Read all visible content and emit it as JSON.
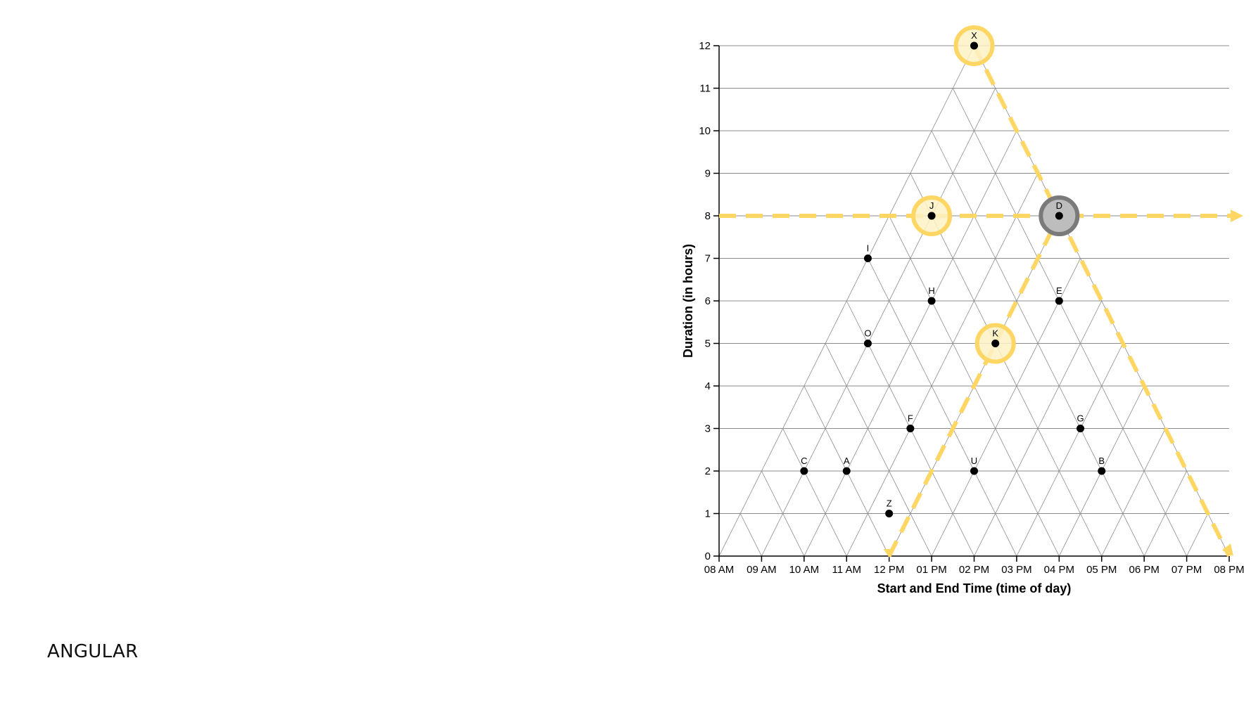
{
  "caption": "ANGULAR",
  "chart_data": {
    "type": "scatter",
    "title": "",
    "xlabel": "Start and End Time (time of day)",
    "ylabel": "Duration (in hours)",
    "xlim": [
      8,
      20
    ],
    "ylim": [
      0,
      12
    ],
    "x_ticks": [
      {
        "value": 8,
        "label": "08 AM"
      },
      {
        "value": 9,
        "label": "09 AM"
      },
      {
        "value": 10,
        "label": "10 AM"
      },
      {
        "value": 11,
        "label": "11 AM"
      },
      {
        "value": 12,
        "label": "12 PM"
      },
      {
        "value": 13,
        "label": "01 PM"
      },
      {
        "value": 14,
        "label": "02 PM"
      },
      {
        "value": 15,
        "label": "03 PM"
      },
      {
        "value": 16,
        "label": "04 PM"
      },
      {
        "value": 17,
        "label": "05 PM"
      },
      {
        "value": 18,
        "label": "06 PM"
      },
      {
        "value": 19,
        "label": "07 PM"
      },
      {
        "value": 20,
        "label": "08 PM"
      }
    ],
    "y_ticks": [
      0,
      1,
      2,
      3,
      4,
      5,
      6,
      7,
      8,
      9,
      10,
      11,
      12
    ],
    "grid": "triangular",
    "points": [
      {
        "label": "X",
        "x": 14,
        "y": 12
      },
      {
        "label": "J",
        "x": 13,
        "y": 8
      },
      {
        "label": "D",
        "x": 16,
        "y": 8
      },
      {
        "label": "I",
        "x": 11.5,
        "y": 7
      },
      {
        "label": "H",
        "x": 13,
        "y": 6
      },
      {
        "label": "E",
        "x": 16,
        "y": 6
      },
      {
        "label": "O",
        "x": 11.5,
        "y": 5
      },
      {
        "label": "K",
        "x": 14.5,
        "y": 5
      },
      {
        "label": "F",
        "x": 12.5,
        "y": 3
      },
      {
        "label": "G",
        "x": 16.5,
        "y": 3
      },
      {
        "label": "C",
        "x": 10,
        "y": 2
      },
      {
        "label": "A",
        "x": 11,
        "y": 2
      },
      {
        "label": "U",
        "x": 14,
        "y": 2
      },
      {
        "label": "B",
        "x": 17,
        "y": 2
      },
      {
        "label": "Z",
        "x": 12,
        "y": 1
      }
    ],
    "highlighted": [
      "X",
      "J",
      "K"
    ],
    "selected": "D",
    "annotations": {
      "horizontal_line_y": 8,
      "diagonal_up_from": [
        12,
        0
      ],
      "diagonal_up_to": [
        16,
        8
      ],
      "diagonal_down_from": [
        14,
        12
      ],
      "diagonal_down_to": [
        20,
        0
      ]
    },
    "colors": {
      "annotation": "#fdd663",
      "highlight_fill": "#fdf1c4",
      "selected_ring": "#7a7a7a",
      "selected_fill": "#bdbdbd",
      "grid": "#8c8c8c",
      "point": "#000000"
    }
  }
}
